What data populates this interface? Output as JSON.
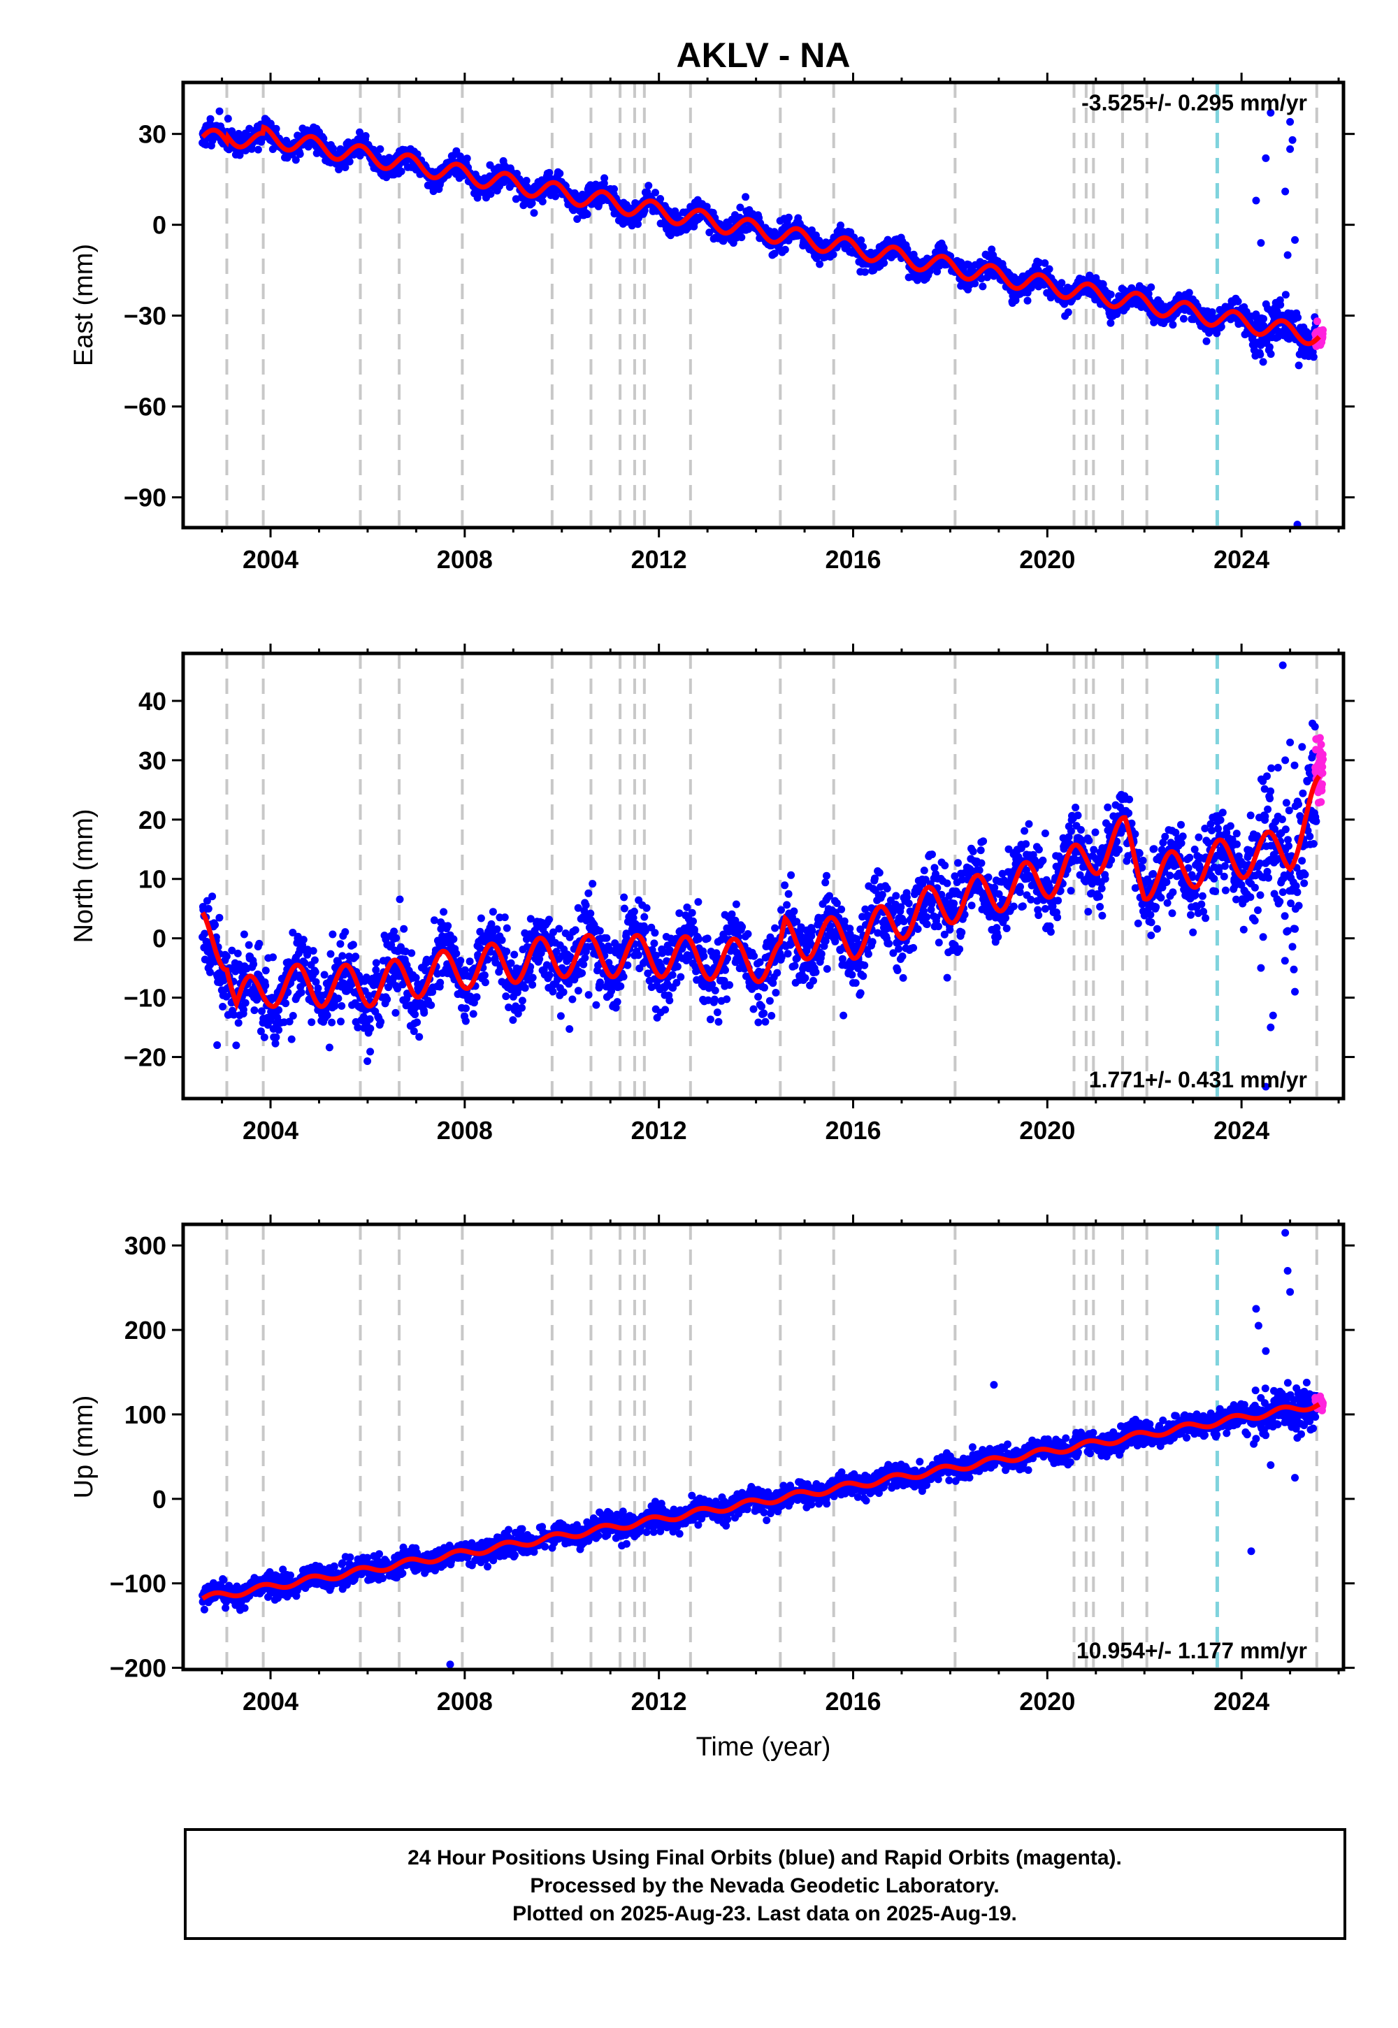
{
  "title": "AKLV - NA",
  "colors": {
    "final_orbits": "#0000ff",
    "rapid_orbits": "#ff22dd",
    "model": "#ff0000",
    "equipment_change": "#c8c8c8",
    "earthquake": "#7fd3dd"
  },
  "chart_data": [
    {
      "type": "scatter",
      "name": "east",
      "ylabel": "East (mm)",
      "xlabel": "",
      "xlim": [
        2002.2,
        2026.1
      ],
      "ylim": [
        -100,
        47
      ],
      "xticks": [
        "2004",
        "2008",
        "2012",
        "2016",
        "2020",
        "2024"
      ],
      "yticks": [
        "30",
        "0",
        "−30",
        "−60",
        "−90"
      ],
      "ytick_values": [
        30,
        0,
        -30,
        -60,
        -90
      ],
      "rate_text": "-3.525+/- 0.295 mm/yr",
      "rate_position": "top-right",
      "trend": {
        "start_year": 2002.6,
        "start_value": 29.0,
        "end_year": 2025.6,
        "end_value": -41.0,
        "seasonal_amplitude": 3.0,
        "scatter_sd": 2.0
      },
      "offsets": [
        {
          "year": 2003.1,
          "delta": 2.0
        },
        {
          "year": 2003.85,
          "delta": 2.0
        }
      ],
      "outliers": [
        {
          "x": 2024.3,
          "y": 8
        },
        {
          "x": 2024.5,
          "y": 22
        },
        {
          "x": 2024.6,
          "y": 37
        },
        {
          "x": 2024.9,
          "y": 11
        },
        {
          "x": 2025.0,
          "y": 25
        },
        {
          "x": 2025.05,
          "y": 28
        },
        {
          "x": 2025.1,
          "y": -5
        },
        {
          "x": 2025.15,
          "y": -99
        },
        {
          "x": 2024.4,
          "y": -6
        },
        {
          "x": 2025.0,
          "y": 34
        },
        {
          "x": 2024.95,
          "y": -10
        }
      ]
    },
    {
      "type": "scatter",
      "name": "north",
      "ylabel": "North (mm)",
      "xlabel": "",
      "xlim": [
        2002.2,
        2026.1
      ],
      "ylim": [
        -27,
        48
      ],
      "xticks": [
        "2004",
        "2008",
        "2012",
        "2016",
        "2020",
        "2024"
      ],
      "yticks": [
        "40",
        "30",
        "20",
        "10",
        "0",
        "−10",
        "−20"
      ],
      "ytick_values": [
        40,
        30,
        20,
        10,
        0,
        -10,
        -20
      ],
      "rate_text": "1.771+/- 0.431 mm/yr",
      "rate_position": "bottom-right",
      "trend_points": [
        {
          "x": 2002.6,
          "y": 1
        },
        {
          "x": 2003.1,
          "y": -2
        },
        {
          "x": 2003.3,
          "y": -11
        },
        {
          "x": 2004.0,
          "y": -8
        },
        {
          "x": 2006.0,
          "y": -8
        },
        {
          "x": 2008.0,
          "y": -5
        },
        {
          "x": 2010.0,
          "y": -3
        },
        {
          "x": 2012.0,
          "y": -3
        },
        {
          "x": 2014.5,
          "y": -4
        },
        {
          "x": 2014.6,
          "y": 0
        },
        {
          "x": 2016.0,
          "y": 0
        },
        {
          "x": 2017.5,
          "y": 5
        },
        {
          "x": 2019.0,
          "y": 8
        },
        {
          "x": 2020.3,
          "y": 11
        },
        {
          "x": 2021.6,
          "y": 17
        },
        {
          "x": 2022.0,
          "y": 10
        },
        {
          "x": 2023.5,
          "y": 13
        },
        {
          "x": 2025.0,
          "y": 15
        },
        {
          "x": 2025.6,
          "y": 24
        }
      ],
      "seasonal_amplitude": 3.5,
      "scatter_sd": 3.2,
      "outliers": [
        {
          "x": 2024.6,
          "y": -15
        },
        {
          "x": 2024.65,
          "y": -13
        },
        {
          "x": 2024.4,
          "y": -5
        },
        {
          "x": 2025.0,
          "y": 33
        },
        {
          "x": 2024.85,
          "y": 46
        },
        {
          "x": 2025.1,
          "y": -9
        },
        {
          "x": 2002.9,
          "y": -18
        },
        {
          "x": 2015.8,
          "y": -13
        },
        {
          "x": 2023.0,
          "y": 1
        },
        {
          "x": 2024.5,
          "y": -25
        },
        {
          "x": 2024.9,
          "y": 30
        }
      ]
    },
    {
      "type": "scatter",
      "name": "up",
      "ylabel": "Up (mm)",
      "xlabel": "Time (year)",
      "xlim": [
        2002.2,
        2026.1
      ],
      "ylim": [
        -202,
        325
      ],
      "xticks": [
        "2004",
        "2008",
        "2012",
        "2016",
        "2020",
        "2024"
      ],
      "yticks": [
        "300",
        "200",
        "100",
        "0",
        "−100",
        "−200"
      ],
      "ytick_values": [
        300,
        200,
        100,
        0,
        -100,
        -200
      ],
      "rate_text": "10.954+/- 1.177 mm/yr",
      "rate_position": "bottom-right",
      "trend": {
        "start_year": 2002.6,
        "start_value": -118.0,
        "end_year": 2025.6,
        "end_value": 112.0,
        "seasonal_amplitude": 4.0,
        "scatter_sd": 7.0
      },
      "offsets": [],
      "outliers": [
        {
          "x": 2024.3,
          "y": 225
        },
        {
          "x": 2024.35,
          "y": 205
        },
        {
          "x": 2024.9,
          "y": 315
        },
        {
          "x": 2024.95,
          "y": 270
        },
        {
          "x": 2025.0,
          "y": 245
        },
        {
          "x": 2024.2,
          "y": -62
        },
        {
          "x": 2018.9,
          "y": 135
        },
        {
          "x": 2007.7,
          "y": -196
        },
        {
          "x": 2024.6,
          "y": 40
        },
        {
          "x": 2025.1,
          "y": 25
        },
        {
          "x": 2024.5,
          "y": 175
        }
      ]
    }
  ],
  "events": {
    "equipment": [
      2003.1,
      2003.85,
      2005.85,
      2006.65,
      2007.95,
      2009.8,
      2010.6,
      2011.2,
      2011.5,
      2011.7,
      2012.65,
      2014.5,
      2015.6,
      2018.1,
      2020.55,
      2020.8,
      2020.95,
      2021.55,
      2022.05,
      2025.55
    ],
    "earthquake": [
      2023.5
    ]
  },
  "caption": {
    "line1": "24 Hour Positions Using Final Orbits (blue) and Rapid Orbits (magenta).",
    "line2": "Processed by the Nevada Geodetic Laboratory.",
    "line3": "Plotted on 2025-Aug-23. Last data on 2025-Aug-19."
  }
}
